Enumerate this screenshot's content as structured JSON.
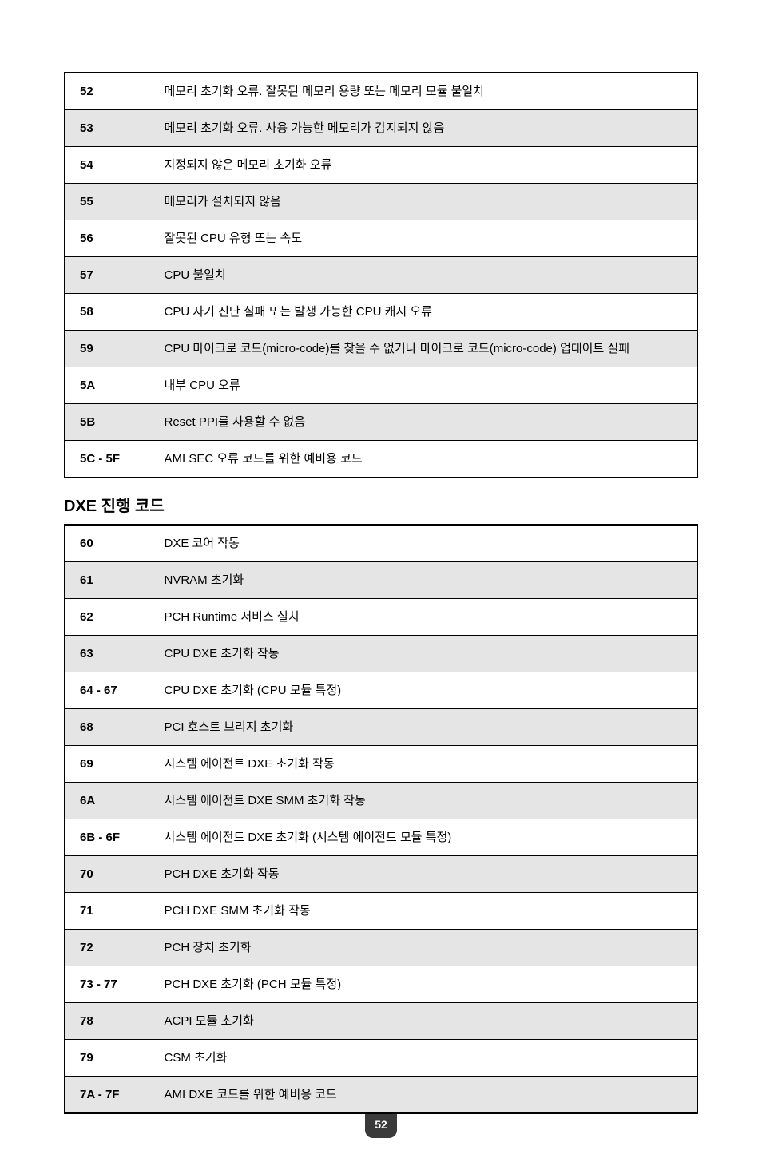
{
  "table1": {
    "rows": [
      {
        "code": "52",
        "desc": "메모리 초기화 오류. 잘못된 메모리 용량 또는 메모리 모듈 불일치",
        "shaded": false
      },
      {
        "code": "53",
        "desc": "메모리 초기화 오류. 사용 가능한 메모리가 감지되지 않음",
        "shaded": true
      },
      {
        "code": "54",
        "desc": "지정되지 않은 메모리 초기화 오류",
        "shaded": false
      },
      {
        "code": "55",
        "desc": "메모리가 설치되지 않음",
        "shaded": true
      },
      {
        "code": "56",
        "desc": "잘못된 CPU 유형 또는 속도",
        "shaded": false
      },
      {
        "code": "57",
        "desc": "CPU 불일치",
        "shaded": true
      },
      {
        "code": "58",
        "desc": "CPU 자기 진단 실패 또는 발생 가능한 CPU 캐시 오류",
        "shaded": false
      },
      {
        "code": "59",
        "desc": "CPU 마이크로 코드(micro-code)를 찾을 수 없거나 마이크로 코드(micro-code) 업데이트 실패",
        "shaded": true
      },
      {
        "code": "5A",
        "desc": "내부 CPU 오류",
        "shaded": false
      },
      {
        "code": "5B",
        "desc": "Reset PPI를 사용할 수 없음",
        "shaded": true
      },
      {
        "code": "5C - 5F",
        "desc": "AMI SEC 오류 코드를 위한 예비용 코드",
        "shaded": false
      }
    ]
  },
  "section2_title": "DXE 진행 코드",
  "table2": {
    "rows": [
      {
        "code": "60",
        "desc": "DXE 코어 작동",
        "shaded": false
      },
      {
        "code": "61",
        "desc": "NVRAM 초기화",
        "shaded": true
      },
      {
        "code": "62",
        "desc": "PCH Runtime 서비스 설치",
        "shaded": false
      },
      {
        "code": "63",
        "desc": "CPU DXE 초기화 작동",
        "shaded": true
      },
      {
        "code": "64 - 67",
        "desc": "CPU DXE 초기화 (CPU 모듈 특정)",
        "shaded": false
      },
      {
        "code": "68",
        "desc": "PCI 호스트 브리지 초기화",
        "shaded": true
      },
      {
        "code": "69",
        "desc": "시스템 에이전트 DXE 초기화 작동",
        "shaded": false
      },
      {
        "code": "6A",
        "desc": "시스템 에이전트 DXE SMM 초기화 작동",
        "shaded": true
      },
      {
        "code": "6B - 6F",
        "desc": "시스템 에이전트 DXE 초기화 (시스템 에이전트 모듈 특정)",
        "shaded": false
      },
      {
        "code": "70",
        "desc": "PCH DXE 초기화 작동",
        "shaded": true
      },
      {
        "code": "71",
        "desc": "PCH DXE SMM 초기화 작동",
        "shaded": false
      },
      {
        "code": "72",
        "desc": "PCH 장치 초기화",
        "shaded": true
      },
      {
        "code": "73 - 77",
        "desc": "PCH DXE 초기화 (PCH 모듈 특정)",
        "shaded": false
      },
      {
        "code": "78",
        "desc": "ACPI 모듈 초기화",
        "shaded": true
      },
      {
        "code": "79",
        "desc": "CSM 초기화",
        "shaded": false
      },
      {
        "code": "7A - 7F",
        "desc": "AMI DXE 코드를 위한 예비용 코드",
        "shaded": true
      }
    ]
  },
  "page_number": "52",
  "style": {
    "row_bg_shaded": "#e5e5e5",
    "row_bg_normal": "#ffffff",
    "border_color": "#000000",
    "text_color": "#000000",
    "code_cell_width": 110,
    "font_size_body": 15,
    "font_size_heading": 20,
    "page_badge_bg": "#3a3a3a",
    "page_badge_fg": "#ffffff"
  }
}
